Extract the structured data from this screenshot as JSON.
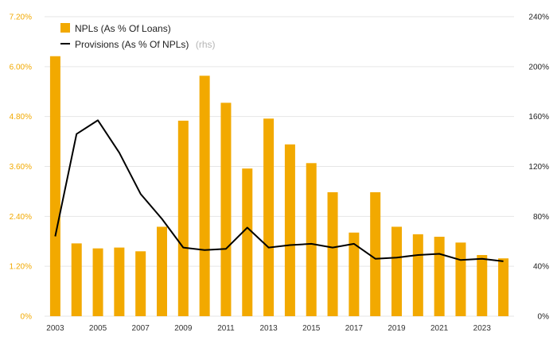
{
  "chart_data": {
    "type": "bar+line",
    "x": [
      2003,
      2004,
      2005,
      2006,
      2007,
      2008,
      2009,
      2010,
      2011,
      2012,
      2013,
      2014,
      2015,
      2016,
      2017,
      2018,
      2019,
      2020,
      2021,
      2022,
      2023,
      2024
    ],
    "x_tick_labels": [
      "2003",
      "2005",
      "2007",
      "2009",
      "2011",
      "2013",
      "2015",
      "2017",
      "2019",
      "2021",
      "2023"
    ],
    "series": [
      {
        "name": "NPLs (As % Of Loans)",
        "type": "bar",
        "axis": "left",
        "color": "#f2a900",
        "values": [
          6.25,
          1.75,
          1.63,
          1.65,
          1.56,
          2.15,
          4.7,
          5.78,
          5.13,
          3.55,
          4.75,
          4.13,
          3.68,
          2.98,
          2.01,
          2.98,
          2.15,
          1.97,
          1.91,
          1.77,
          1.47,
          1.39
        ]
      },
      {
        "name": "Provisions (As % Of NPLs)",
        "name_note": "(rhs)",
        "type": "line",
        "axis": "right",
        "color": "#000000",
        "values": [
          64,
          146,
          157,
          131,
          98,
          78,
          55,
          53,
          54,
          71,
          55,
          57,
          58,
          55,
          58,
          46,
          47,
          49,
          50,
          45,
          46,
          44
        ]
      }
    ],
    "left_axis": {
      "min": 0,
      "max": 7.2,
      "step": 1.2,
      "tick_labels": [
        "0%",
        "1.20%",
        "2.40%",
        "3.60%",
        "4.80%",
        "6.00%",
        "7.20%"
      ]
    },
    "right_axis": {
      "min": 0,
      "max": 240,
      "step": 40,
      "tick_labels": [
        "0%",
        "40%",
        "80%",
        "120%",
        "160%",
        "200%",
        "240%"
      ]
    },
    "legend_position": "top-left",
    "grid": true,
    "title": ""
  }
}
